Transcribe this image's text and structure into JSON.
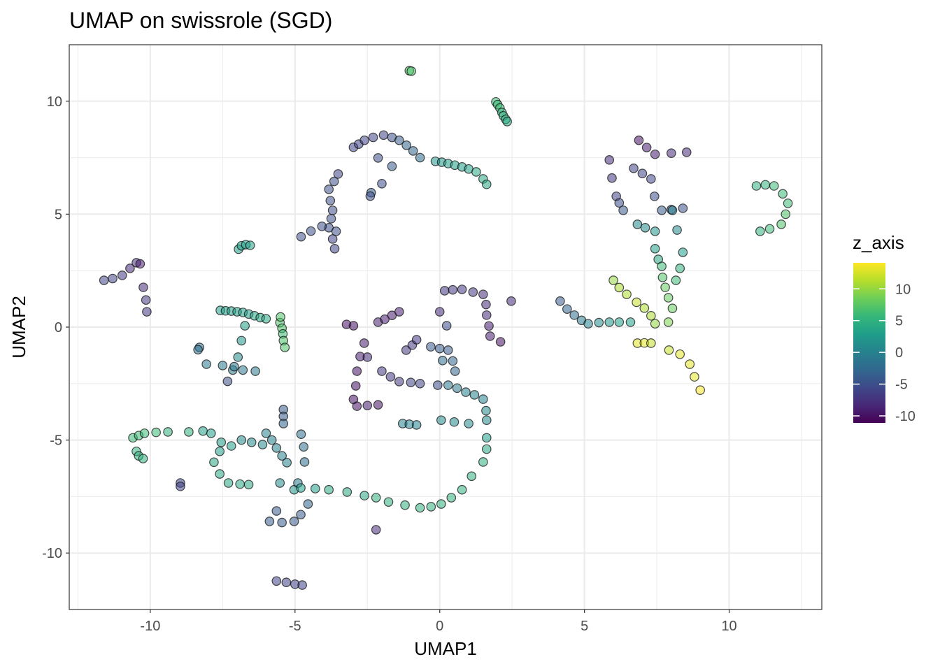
{
  "chart_data": {
    "type": "scatter",
    "title": "UMAP on swissrole (SGD)",
    "xlabel": "UMAP1",
    "ylabel": "UMAP2",
    "xlim": [
      -12.8,
      13.2
    ],
    "ylim": [
      -12.5,
      12.5
    ],
    "xticks": [
      -10,
      -5,
      0,
      5,
      10
    ],
    "yticks": [
      -10,
      -5,
      0,
      5,
      10
    ],
    "xtick_labels": [
      "-10",
      "-5",
      "0",
      "5",
      "10"
    ],
    "ytick_labels": [
      "-10",
      "-5",
      "0",
      "5",
      "10"
    ],
    "grid": true,
    "legend": {
      "title": "z_axis",
      "placement": "right",
      "type": "colorbar",
      "range": [
        -11.1,
        14.1
      ],
      "ticks": [
        10,
        5,
        0,
        -5,
        -10
      ],
      "tick_labels": [
        "10",
        "5",
        "0",
        "-5",
        "-10"
      ],
      "colormap": [
        "#440154",
        "#482878",
        "#3e4989",
        "#31688e",
        "#26828e",
        "#1f9e89",
        "#35b779",
        "#6ece58",
        "#b5de2b",
        "#fde725"
      ]
    },
    "points": [
      [
        -1.05,
        11.35,
        7
      ],
      [
        -0.98,
        11.33,
        7
      ],
      [
        1.94,
        9.97,
        6
      ],
      [
        2.0,
        9.85,
        6
      ],
      [
        2.08,
        9.7,
        6
      ],
      [
        2.15,
        9.5,
        5
      ],
      [
        2.2,
        9.35,
        5
      ],
      [
        2.28,
        9.2,
        5
      ],
      [
        2.33,
        9.1,
        4
      ],
      [
        -2.98,
        7.96,
        -6
      ],
      [
        -2.8,
        8.1,
        -6
      ],
      [
        -2.6,
        8.27,
        -6
      ],
      [
        -2.3,
        8.4,
        -6
      ],
      [
        -1.94,
        8.5,
        -6
      ],
      [
        -1.65,
        8.4,
        -5
      ],
      [
        -1.4,
        8.27,
        -4
      ],
      [
        -1.15,
        8.05,
        -3
      ],
      [
        -0.92,
        7.8,
        -3
      ],
      [
        -0.68,
        7.5,
        -2
      ],
      [
        -0.15,
        7.34,
        2
      ],
      [
        0.07,
        7.3,
        2
      ],
      [
        0.29,
        7.24,
        3
      ],
      [
        0.52,
        7.17,
        3
      ],
      [
        0.77,
        7.09,
        3
      ],
      [
        1.0,
        7.0,
        3
      ],
      [
        1.26,
        6.87,
        4
      ],
      [
        1.5,
        6.56,
        4
      ],
      [
        1.62,
        6.32,
        4
      ],
      [
        -2.13,
        7.49,
        -5
      ],
      [
        -1.65,
        7.12,
        -4
      ],
      [
        -2.0,
        6.35,
        -5
      ],
      [
        -2.37,
        5.95,
        -4
      ],
      [
        -2.4,
        5.8,
        -5
      ],
      [
        -3.63,
        3.47,
        -6
      ],
      [
        -3.7,
        3.9,
        -6
      ],
      [
        -3.83,
        4.4,
        -5
      ],
      [
        -3.75,
        4.8,
        -5
      ],
      [
        -3.7,
        5.17,
        -5
      ],
      [
        -3.78,
        5.6,
        -5
      ],
      [
        -3.83,
        6.1,
        -5
      ],
      [
        -3.65,
        6.45,
        -5
      ],
      [
        -3.51,
        6.78,
        -6
      ],
      [
        -4.79,
        4.0,
        -5
      ],
      [
        -4.45,
        4.25,
        -5
      ],
      [
        -4.07,
        4.46,
        -5
      ],
      [
        -3.58,
        4.24,
        -5
      ],
      [
        -6.95,
        3.45,
        3
      ],
      [
        -6.85,
        3.6,
        3
      ],
      [
        -6.7,
        3.65,
        3
      ],
      [
        -6.55,
        3.62,
        3
      ],
      [
        -11.6,
        2.07,
        -6
      ],
      [
        -11.3,
        2.15,
        -6
      ],
      [
        -10.97,
        2.29,
        -7
      ],
      [
        -10.7,
        2.6,
        -8
      ],
      [
        -10.48,
        2.85,
        -8
      ],
      [
        -10.35,
        2.8,
        -9
      ],
      [
        -10.24,
        1.76,
        -8
      ],
      [
        -10.15,
        1.2,
        -7
      ],
      [
        -10.12,
        0.68,
        -7
      ],
      [
        -7.58,
        0.74,
        3
      ],
      [
        -7.4,
        0.72,
        3
      ],
      [
        -7.2,
        0.71,
        3
      ],
      [
        -7.0,
        0.68,
        3
      ],
      [
        -6.8,
        0.65,
        3
      ],
      [
        -6.6,
        0.58,
        3
      ],
      [
        -6.4,
        0.5,
        4
      ],
      [
        -6.2,
        0.42,
        4
      ],
      [
        -6.0,
        0.37,
        4
      ],
      [
        -5.52,
        0.2,
        7
      ],
      [
        -5.5,
        0.45,
        7
      ],
      [
        -5.45,
        -0.05,
        7
      ],
      [
        -5.42,
        -0.3,
        6
      ],
      [
        -5.4,
        -0.6,
        7
      ],
      [
        -5.35,
        -0.9,
        7
      ],
      [
        -6.73,
        0.06,
        3
      ],
      [
        -6.85,
        -0.6,
        2
      ],
      [
        -6.97,
        -1.33,
        1
      ],
      [
        -7.15,
        -1.9,
        -1
      ],
      [
        -7.33,
        -2.4,
        -5
      ],
      [
        -8.3,
        -0.9,
        -2
      ],
      [
        -8.35,
        -1.0,
        -2
      ],
      [
        -8.06,
        -1.64,
        -1
      ],
      [
        -7.5,
        -1.7,
        -1
      ],
      [
        -7.1,
        -1.75,
        -1
      ],
      [
        -6.8,
        -1.9,
        -1
      ],
      [
        -6.37,
        -1.95,
        -1
      ],
      [
        -10.6,
        -4.9,
        6
      ],
      [
        -10.4,
        -4.8,
        6
      ],
      [
        -10.2,
        -4.7,
        6
      ],
      [
        -9.8,
        -4.66,
        6
      ],
      [
        -9.39,
        -4.64,
        5
      ],
      [
        -8.67,
        -4.64,
        5
      ],
      [
        -10.48,
        -5.5,
        5
      ],
      [
        -10.4,
        -5.7,
        5
      ],
      [
        -10.25,
        -5.82,
        5
      ],
      [
        -8.96,
        -6.9,
        -6
      ],
      [
        -8.96,
        -7.05,
        -6
      ],
      [
        -8.18,
        -4.6,
        3
      ],
      [
        -7.9,
        -4.7,
        3
      ],
      [
        -7.55,
        -5.1,
        3
      ],
      [
        -7.2,
        -5.26,
        3
      ],
      [
        -7.6,
        -5.5,
        3
      ],
      [
        -7.8,
        -5.98,
        4
      ],
      [
        -7.6,
        -6.5,
        4
      ],
      [
        -7.3,
        -6.9,
        4
      ],
      [
        -6.9,
        -6.95,
        4
      ],
      [
        -6.6,
        -6.97,
        4
      ],
      [
        -6.85,
        -5.0,
        1
      ],
      [
        -6.5,
        -5.1,
        1
      ],
      [
        -6.12,
        -5.2,
        1
      ],
      [
        -6.0,
        -4.7,
        0
      ],
      [
        -5.8,
        -5.0,
        0
      ],
      [
        -5.64,
        -5.35,
        0
      ],
      [
        -5.45,
        -5.7,
        0
      ],
      [
        -5.28,
        -6.0,
        0
      ],
      [
        -5.52,
        -6.9,
        1
      ],
      [
        -5.03,
        -7.2,
        2
      ],
      [
        -5.4,
        -3.65,
        -4
      ],
      [
        -5.4,
        -3.95,
        -4
      ],
      [
        -5.4,
        -4.27,
        -3
      ],
      [
        -4.79,
        -4.74,
        -2
      ],
      [
        -4.7,
        -5.3,
        -2
      ],
      [
        -4.67,
        -5.97,
        -2
      ],
      [
        -4.9,
        -6.9,
        -1
      ],
      [
        -4.8,
        -7.12,
        3
      ],
      [
        -4.3,
        -7.15,
        3
      ],
      [
        -3.83,
        -7.2,
        4
      ],
      [
        -3.2,
        -7.3,
        4
      ],
      [
        -2.6,
        -7.46,
        4
      ],
      [
        -2.2,
        -7.55,
        5
      ],
      [
        -1.77,
        -7.74,
        5
      ],
      [
        -1.2,
        -7.88,
        5
      ],
      [
        -0.68,
        -8.0,
        5
      ],
      [
        -0.3,
        -7.95,
        5
      ],
      [
        0.05,
        -7.83,
        5
      ],
      [
        0.4,
        -7.55,
        5
      ],
      [
        0.77,
        -7.2,
        5
      ],
      [
        1.1,
        -6.6,
        5
      ],
      [
        1.5,
        -5.97,
        5
      ],
      [
        1.62,
        -5.4,
        4
      ],
      [
        1.62,
        -4.9,
        3
      ],
      [
        -5.64,
        -8.14,
        -4
      ],
      [
        -5.88,
        -8.6,
        -4
      ],
      [
        -5.45,
        -8.65,
        -4
      ],
      [
        -5.03,
        -8.6,
        -4
      ],
      [
        -4.8,
        -8.3,
        -4
      ],
      [
        -4.55,
        -7.83,
        -3
      ],
      [
        -2.2,
        -8.97,
        -8
      ],
      [
        -5.64,
        -11.24,
        -6
      ],
      [
        -5.3,
        -11.3,
        -6
      ],
      [
        -5.0,
        -11.38,
        -6
      ],
      [
        -4.75,
        -11.42,
        -6
      ],
      [
        -3.22,
        0.12,
        -10
      ],
      [
        -2.98,
        0.06,
        -10
      ],
      [
        -2.13,
        0.22,
        -9
      ],
      [
        -1.9,
        0.35,
        -9
      ],
      [
        -1.65,
        0.52,
        -9
      ],
      [
        -1.4,
        0.68,
        -9
      ],
      [
        -2.61,
        -0.71,
        -9
      ],
      [
        -2.75,
        -1.3,
        -9
      ],
      [
        -2.86,
        -1.95,
        -10
      ],
      [
        -2.9,
        -2.6,
        -10
      ],
      [
        -2.98,
        -3.2,
        -10
      ],
      [
        -2.86,
        -3.5,
        -10
      ],
      [
        -2.5,
        -3.47,
        -9
      ],
      [
        -2.13,
        -3.44,
        -10
      ],
      [
        -2.5,
        -1.33,
        -8
      ],
      [
        -2.0,
        -1.95,
        -7
      ],
      [
        -1.7,
        -2.2,
        -7
      ],
      [
        -1.4,
        -2.41,
        -7
      ],
      [
        -1.0,
        -2.45,
        -6
      ],
      [
        -0.68,
        -2.5,
        -6
      ],
      [
        -0.07,
        -2.57,
        -5
      ],
      [
        -1.16,
        -1.02,
        -7
      ],
      [
        -0.95,
        -0.8,
        -7
      ],
      [
        -0.8,
        -0.56,
        -7
      ],
      [
        -0.31,
        -0.87,
        -4
      ],
      [
        0.0,
        -0.95,
        -4
      ],
      [
        0.29,
        -1.02,
        -4
      ],
      [
        0.45,
        -1.5,
        -3
      ],
      [
        0.53,
        -1.95,
        -3
      ],
      [
        0.1,
        -1.48,
        -2
      ],
      [
        0.29,
        -2.57,
        -1
      ],
      [
        0.6,
        -2.7,
        -1
      ],
      [
        0.9,
        -2.88,
        0
      ],
      [
        1.2,
        -3.0,
        0
      ],
      [
        1.5,
        -3.19,
        0
      ],
      [
        1.6,
        -3.7,
        1
      ],
      [
        1.62,
        -4.12,
        1
      ],
      [
        -1.28,
        -4.27,
        0
      ],
      [
        -1.05,
        -4.3,
        0
      ],
      [
        -0.8,
        -4.33,
        0
      ],
      [
        0.05,
        -4.12,
        1
      ],
      [
        0.5,
        -4.2,
        1
      ],
      [
        1.0,
        -4.27,
        1
      ],
      [
        0.0,
        0.68,
        -8
      ],
      [
        0.17,
        1.61,
        -7
      ],
      [
        0.45,
        1.65,
        -7
      ],
      [
        0.77,
        1.67,
        -7
      ],
      [
        1.15,
        1.55,
        -7
      ],
      [
        1.5,
        1.45,
        -8
      ],
      [
        1.6,
        1.0,
        -8
      ],
      [
        1.62,
        0.53,
        -8
      ],
      [
        1.7,
        0.05,
        -9
      ],
      [
        1.74,
        -0.4,
        -9
      ],
      [
        2.1,
        -0.65,
        -10
      ],
      [
        2.47,
        1.15,
        -8
      ],
      [
        0.24,
        0.06,
        -5
      ],
      [
        5.86,
        7.4,
        -8
      ],
      [
        5.95,
        6.6,
        -7
      ],
      [
        6.1,
        5.79,
        -6
      ],
      [
        6.2,
        5.5,
        -5
      ],
      [
        6.34,
        5.17,
        -4
      ],
      [
        6.88,
        8.27,
        -10
      ],
      [
        7.15,
        7.95,
        -9
      ],
      [
        7.44,
        7.65,
        -9
      ],
      [
        8.0,
        7.7,
        -8
      ],
      [
        8.53,
        7.74,
        -8
      ],
      [
        6.7,
        7.03,
        -6
      ],
      [
        7.0,
        6.8,
        -6
      ],
      [
        7.3,
        6.56,
        -6
      ],
      [
        7.42,
        5.79,
        -5
      ],
      [
        7.67,
        5.17,
        -4
      ],
      [
        8.0,
        5.2,
        -4
      ],
      [
        8.4,
        5.26,
        -5
      ],
      [
        6.83,
        4.55,
        1
      ],
      [
        7.1,
        4.4,
        1
      ],
      [
        7.44,
        4.24,
        2
      ],
      [
        7.44,
        3.47,
        3
      ],
      [
        7.55,
        3.0,
        4
      ],
      [
        7.67,
        2.69,
        6
      ],
      [
        7.7,
        2.2,
        7
      ],
      [
        7.79,
        1.76,
        8
      ],
      [
        7.9,
        1.3,
        8
      ],
      [
        8.04,
        0.83,
        8
      ],
      [
        7.9,
        0.22,
        9
      ],
      [
        8.04,
        5.17,
        0
      ],
      [
        8.2,
        4.3,
        1
      ],
      [
        8.4,
        3.31,
        3
      ],
      [
        8.3,
        2.6,
        5
      ],
      [
        8.16,
        2.07,
        6
      ],
      [
        6.0,
        2.07,
        10
      ],
      [
        6.2,
        1.75,
        11
      ],
      [
        6.46,
        1.45,
        11
      ],
      [
        6.8,
        1.1,
        12
      ],
      [
        7.07,
        0.84,
        11
      ],
      [
        7.3,
        0.5,
        11
      ],
      [
        7.44,
        0.15,
        10
      ],
      [
        6.83,
        -0.71,
        13
      ],
      [
        7.07,
        -0.7,
        13
      ],
      [
        7.3,
        -0.71,
        12
      ],
      [
        7.92,
        -1.02,
        12
      ],
      [
        8.3,
        -1.2,
        13
      ],
      [
        8.64,
        -1.64,
        13
      ],
      [
        8.8,
        -2.2,
        13
      ],
      [
        9.0,
        -2.79,
        14
      ],
      [
        4.16,
        1.15,
        -4
      ],
      [
        4.4,
        0.8,
        -3
      ],
      [
        4.65,
        0.53,
        -2
      ],
      [
        4.9,
        0.3,
        -1
      ],
      [
        5.13,
        0.15,
        0
      ],
      [
        5.5,
        0.2,
        1
      ],
      [
        5.86,
        0.22,
        2
      ],
      [
        6.2,
        0.22,
        3
      ],
      [
        6.59,
        0.22,
        3
      ],
      [
        10.94,
        6.25,
        5
      ],
      [
        11.25,
        6.3,
        5
      ],
      [
        11.55,
        6.25,
        6
      ],
      [
        11.85,
        5.9,
        6
      ],
      [
        12.03,
        5.48,
        6
      ],
      [
        11.95,
        5.0,
        7
      ],
      [
        11.8,
        4.55,
        7
      ],
      [
        11.4,
        4.35,
        6
      ],
      [
        11.07,
        4.24,
        5
      ]
    ]
  }
}
